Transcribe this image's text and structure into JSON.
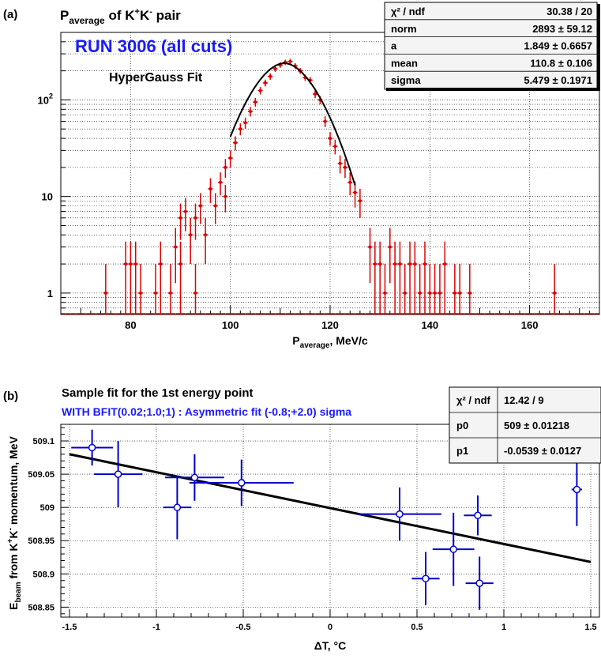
{
  "chart_data": [
    {
      "panel_label": "(a)",
      "type": "scatter",
      "title": {
        "main": "P",
        "sub": "average",
        "tail": " of K",
        "sup1": "+",
        "mid": "K",
        "sup2": "-",
        "end": " pair"
      },
      "annotations": {
        "run": "RUN 3006 (all cuts)",
        "fit": "HyperGauss Fit"
      },
      "xlabel": {
        "main": "P",
        "sub": "average",
        "tail": ", MeV/c"
      },
      "ylabel": "",
      "xlim": [
        66,
        174
      ],
      "ylim": [
        0.6,
        500
      ],
      "yscale": "log",
      "grid": true,
      "x_ticks": [
        80,
        100,
        120,
        140,
        160
      ],
      "y_ticks": [
        {
          "value": 1,
          "label": "1"
        },
        {
          "value": 10,
          "label": "10"
        },
        {
          "value": 100,
          "label": "10",
          "sup": "2"
        }
      ],
      "stats": [
        {
          "name": "χ² / ndf",
          "value": "30.38 / 20"
        },
        {
          "name": "norm",
          "value": "2893 ± 59.12"
        },
        {
          "name": "a",
          "value": "1.849 ± 0.6657"
        },
        {
          "name": "mean",
          "value": "110.8 ± 0.106"
        },
        {
          "name": "sigma",
          "value": "5.479 ± 0.1971"
        }
      ],
      "points": [
        [
          75,
          1
        ],
        [
          79,
          2
        ],
        [
          80,
          2
        ],
        [
          81,
          2
        ],
        [
          82,
          1
        ],
        [
          85,
          1
        ],
        [
          86,
          2
        ],
        [
          88,
          1
        ],
        [
          89,
          3
        ],
        [
          90,
          2
        ],
        [
          90,
          6
        ],
        [
          91,
          7
        ],
        [
          92,
          4
        ],
        [
          93,
          6
        ],
        [
          93,
          1
        ],
        [
          94,
          8
        ],
        [
          95,
          4
        ],
        [
          96,
          12
        ],
        [
          97,
          8
        ],
        [
          98,
          14
        ],
        [
          99,
          20
        ],
        [
          99,
          10
        ],
        [
          100,
          25
        ],
        [
          101,
          36
        ],
        [
          102,
          50
        ],
        [
          103,
          58
        ],
        [
          104,
          76
        ],
        [
          105,
          95
        ],
        [
          106,
          125
        ],
        [
          107,
          150
        ],
        [
          108,
          175
        ],
        [
          109,
          210
        ],
        [
          110,
          230
        ],
        [
          111,
          245
        ],
        [
          112,
          250
        ],
        [
          113,
          225
        ],
        [
          114,
          200
        ],
        [
          115,
          170
        ],
        [
          116,
          160
        ],
        [
          117,
          115
        ],
        [
          118,
          100
        ],
        [
          119,
          60
        ],
        [
          120,
          40
        ],
        [
          121,
          33
        ],
        [
          122,
          22
        ],
        [
          123,
          20
        ],
        [
          124,
          14
        ],
        [
          125,
          11
        ],
        [
          126,
          9
        ],
        [
          128,
          3
        ],
        [
          129,
          2
        ],
        [
          130,
          2
        ],
        [
          131,
          1
        ],
        [
          132,
          3
        ],
        [
          133,
          2
        ],
        [
          134,
          2
        ],
        [
          135,
          1
        ],
        [
          136,
          2
        ],
        [
          137,
          2
        ],
        [
          138,
          1
        ],
        [
          139,
          2
        ],
        [
          140,
          1
        ],
        [
          141,
          1
        ],
        [
          142,
          1
        ],
        [
          143,
          2
        ],
        [
          145,
          1
        ],
        [
          146,
          1
        ],
        [
          148,
          1
        ],
        [
          165,
          1
        ]
      ],
      "fit_curve": {
        "name": "HyperGauss Fit",
        "x_range": [
          100,
          125
        ],
        "peak": 240,
        "mean": 110.8,
        "sigma": 5.479
      },
      "colors": {
        "points": "#dd0000",
        "fit": "#000000",
        "annotation": "#1a1aff"
      }
    },
    {
      "panel_label": "(b)",
      "type": "scatter",
      "title": "Sample fit for the 1st energy point",
      "subtitle": "WITH BFIT(0.02;1.0;1) : Asymmetric fit (-0.8;+2.0) sigma",
      "xlabel": {
        "main": "ΔT, ",
        "deg": "°",
        "tail": "C"
      },
      "ylabel": {
        "main": "E",
        "sub": "beam",
        "mid": " from K",
        "sup1": "+",
        "k2": "K",
        "sup2": "-",
        "tail": " momentum, MeV"
      },
      "xlim": [
        -1.55,
        1.55
      ],
      "ylim": [
        508.835,
        509.125
      ],
      "grid": true,
      "x_ticks": [
        {
          "value": -1.5,
          "label": "-1.5"
        },
        {
          "value": -1,
          "label": "-1"
        },
        {
          "value": -0.5,
          "label": "-0.5"
        },
        {
          "value": 0,
          "label": "0"
        },
        {
          "value": 0.5,
          "label": "0.5"
        },
        {
          "value": 1,
          "label": "1"
        },
        {
          "value": 1.5,
          "label": "1.5"
        }
      ],
      "y_ticks": [
        {
          "value": 508.85,
          "label": "508.85"
        },
        {
          "value": 508.9,
          "label": "508.9"
        },
        {
          "value": 508.95,
          "label": "508.95"
        },
        {
          "value": 509,
          "label": "509"
        },
        {
          "value": 509.05,
          "label": "509.05"
        },
        {
          "value": 509.1,
          "label": "509.1"
        }
      ],
      "stats": [
        {
          "name": "χ² / ndf",
          "value": "12.42 / 9"
        },
        {
          "name": "p0",
          "value": "509 ± 0.01218"
        },
        {
          "name": "p1",
          "value": "-0.0539 ± 0.0127"
        }
      ],
      "points": [
        {
          "x": -1.37,
          "y": 509.09,
          "xerr": 0.12,
          "yerr": 0.027
        },
        {
          "x": -1.22,
          "y": 509.05,
          "xerr": 0.14,
          "yerr": 0.05
        },
        {
          "x": -0.88,
          "y": 509.0,
          "xerr": 0.08,
          "yerr": 0.048
        },
        {
          "x": -0.78,
          "y": 509.045,
          "xerr": 0.17,
          "yerr": 0.035
        },
        {
          "x": -0.51,
          "y": 509.037,
          "xerr": 0.3,
          "yerr": 0.035
        },
        {
          "x": 0.4,
          "y": 508.99,
          "xerr": 0.24,
          "yerr": 0.04
        },
        {
          "x": 0.55,
          "y": 508.893,
          "xerr": 0.08,
          "yerr": 0.04
        },
        {
          "x": 0.71,
          "y": 508.937,
          "xerr": 0.12,
          "yerr": 0.055
        },
        {
          "x": 0.85,
          "y": 508.988,
          "xerr": 0.08,
          "yerr": 0.03
        },
        {
          "x": 0.86,
          "y": 508.886,
          "xerr": 0.08,
          "yerr": 0.04
        },
        {
          "x": 1.42,
          "y": 509.027,
          "xerr": 0.03,
          "yerr": 0.055
        }
      ],
      "fit_line": {
        "x": [
          -1.5,
          1.5
        ],
        "y": [
          509.08,
          508.918
        ]
      },
      "colors": {
        "points": "#0000cc",
        "fit": "#000000",
        "subtitle": "#1a1aff"
      }
    }
  ]
}
